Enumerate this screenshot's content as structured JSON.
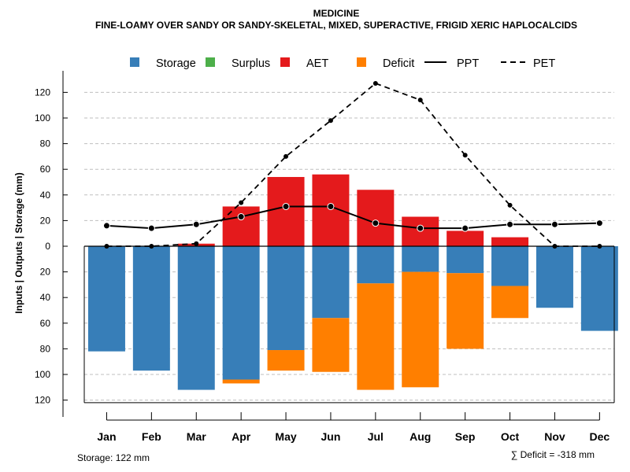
{
  "chart_data": {
    "type": "bar",
    "title": "MEDICINE",
    "subtitle": "FINE-LOAMY OVER SANDY OR SANDY-SKELETAL, MIXED, SUPERACTIVE, FRIGID XERIC HAPLOCALCIDS",
    "ylabel": "Inputs | Outputs | Storage    (mm)",
    "categories": [
      "Jan",
      "Feb",
      "Mar",
      "Apr",
      "May",
      "Jun",
      "Jul",
      "Aug",
      "Sep",
      "Oct",
      "Nov",
      "Dec"
    ],
    "yticks_up": [
      "20",
      "40",
      "60",
      "80",
      "100",
      "120"
    ],
    "yticks_down": [
      "0",
      "20",
      "40",
      "60",
      "80",
      "100",
      "120"
    ],
    "ylim": [
      -122,
      130
    ],
    "legend": {
      "storage": "Storage",
      "surplus": "Surplus",
      "aet": "AET",
      "deficit": "Deficit",
      "ppt": "PPT",
      "pet": "PET"
    },
    "colors": {
      "storage": "#377EB8",
      "surplus": "#4DAF4A",
      "aet": "#E41A1C",
      "deficit": "#FF7F00",
      "grid": "#bfbfbf"
    },
    "series": [
      {
        "name": "AET",
        "values": [
          0,
          0,
          2,
          31,
          54,
          56,
          44,
          23,
          12,
          7,
          0,
          0
        ]
      },
      {
        "name": "Storage",
        "values": [
          -82,
          -97,
          -112,
          -104,
          -81,
          -56,
          -29,
          -20,
          -21,
          -31,
          -48,
          -66
        ]
      },
      {
        "name": "Deficit",
        "values": [
          0,
          0,
          0,
          -3,
          -16,
          -42,
          -83,
          -90,
          -59,
          -25,
          0,
          0
        ]
      },
      {
        "name": "Surplus",
        "values": [
          0,
          0,
          0,
          0,
          0,
          0,
          0,
          0,
          0,
          0,
          0,
          0
        ]
      },
      {
        "name": "PPT",
        "values": [
          16,
          14,
          17,
          23,
          31,
          31,
          18,
          14,
          14,
          17,
          17,
          18
        ]
      },
      {
        "name": "PET",
        "values": [
          0,
          0,
          2,
          34,
          70,
          98,
          127,
          114,
          71,
          32,
          0,
          0
        ]
      }
    ]
  },
  "footer": {
    "storage_note": "Storage: 122 mm",
    "deficit_note": "∑ Deficit = -318 mm"
  }
}
